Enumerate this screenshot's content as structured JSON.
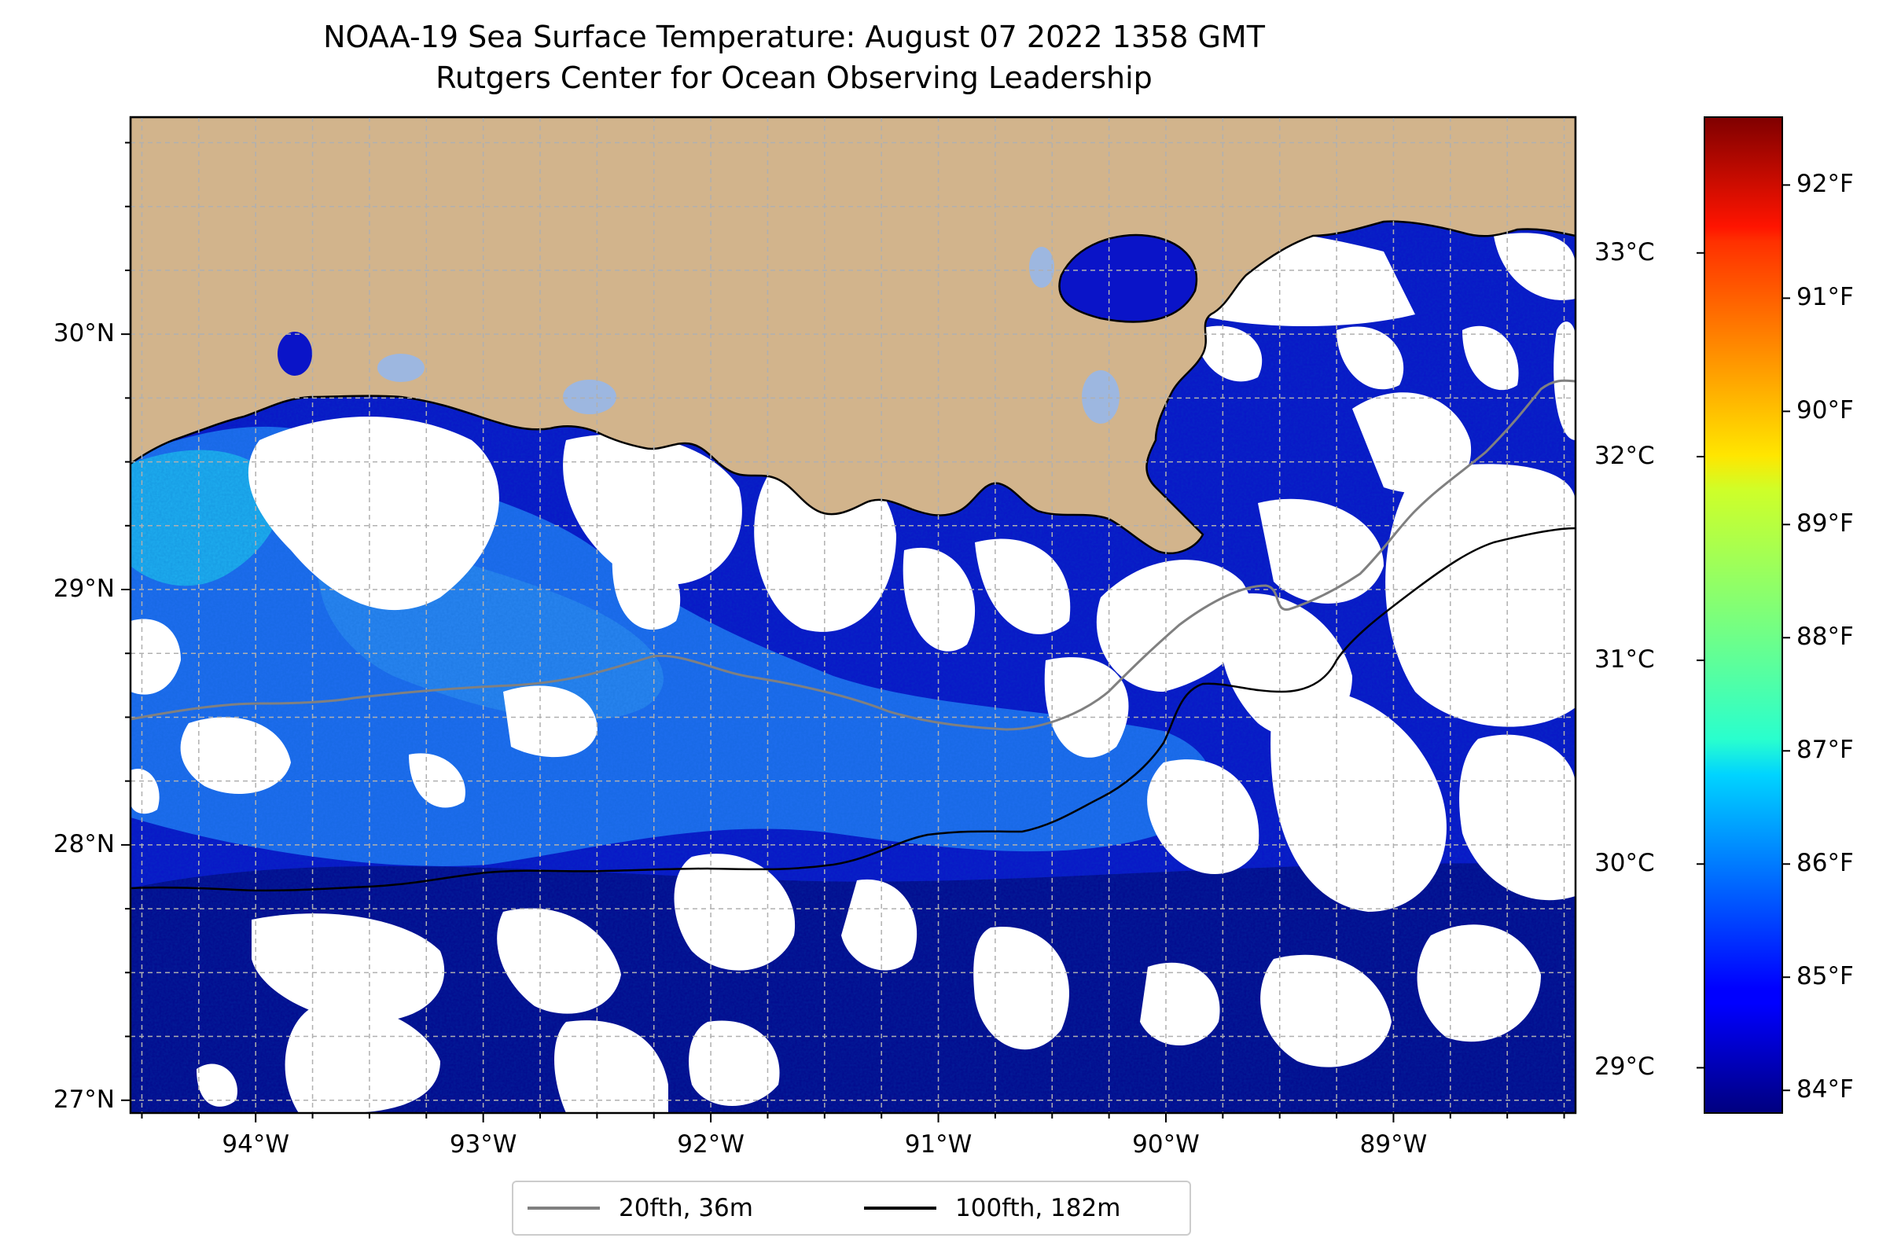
{
  "title_line1": "NOAA-19 Sea Surface Temperature: August 07 2022 1358 GMT",
  "title_line2": "Rutgers Center for Ocean Observing Leadership",
  "colors": {
    "land": "#d2b48c",
    "land_outline": "#000000",
    "lakes": "#9db7e0",
    "missing_data": "#ffffff",
    "isobath_20fth": "#808080",
    "isobath_100fth": "#000000",
    "grid": "#b0b0b0"
  },
  "map": {
    "lon_range": [
      -94.55,
      -88.2
    ],
    "lat_range": [
      26.95,
      30.85
    ],
    "lat_ticks": [
      {
        "value": 30,
        "label": "30°N"
      },
      {
        "value": 29,
        "label": "29°N"
      },
      {
        "value": 28,
        "label": "28°N"
      },
      {
        "value": 27,
        "label": "27°N"
      }
    ],
    "lon_ticks": [
      {
        "value": -94,
        "label": "94°W"
      },
      {
        "value": -93,
        "label": "93°W"
      },
      {
        "value": -92,
        "label": "92°W"
      },
      {
        "value": -91,
        "label": "91°W"
      },
      {
        "value": -90,
        "label": "90°W"
      },
      {
        "value": -89,
        "label": "89°W"
      }
    ]
  },
  "colorbar": {
    "colormap": "jet",
    "range_f": [
      83.8,
      92.6
    ],
    "celsius_ticks": [
      {
        "value": 29,
        "label": "29°C"
      },
      {
        "value": 30,
        "label": "30°C"
      },
      {
        "value": 31,
        "label": "31°C"
      },
      {
        "value": 32,
        "label": "32°C"
      },
      {
        "value": 33,
        "label": "33°C"
      }
    ],
    "fahrenheit_ticks": [
      {
        "value": 84,
        "label": "84°F"
      },
      {
        "value": 85,
        "label": "85°F"
      },
      {
        "value": 86,
        "label": "86°F"
      },
      {
        "value": 87,
        "label": "87°F"
      },
      {
        "value": 88,
        "label": "88°F"
      },
      {
        "value": 89,
        "label": "89°F"
      },
      {
        "value": 90,
        "label": "90°F"
      },
      {
        "value": 91,
        "label": "91°F"
      },
      {
        "value": 92,
        "label": "92°F"
      }
    ]
  },
  "legend": {
    "item_20fth": "20fth, 36m",
    "item_100fth": "100fth, 182m"
  }
}
